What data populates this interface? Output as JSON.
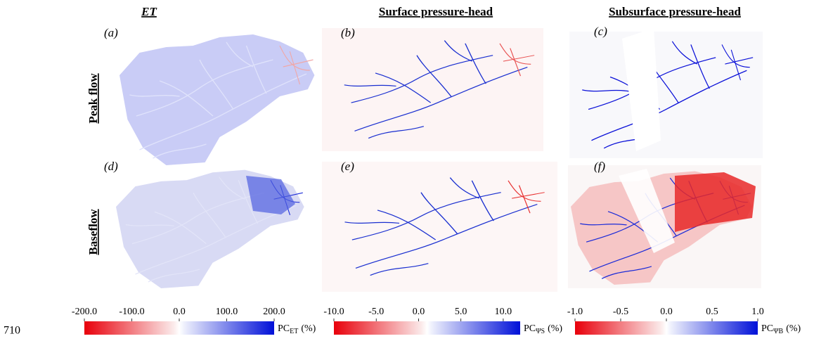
{
  "columns": [
    "ET",
    "Surface pressure-head",
    "Subsurface pressure-head"
  ],
  "rows": [
    "Peak flow",
    "Baseflow"
  ],
  "panels": [
    "(a)",
    "(b)",
    "(c)",
    "(d)",
    "(e)",
    "(f)"
  ],
  "colorbars": [
    {
      "label": {
        "main": "PC",
        "sub": "ET",
        "unit": "(%)"
      },
      "lim": [
        -200,
        200
      ],
      "ticks": [
        {
          "value": -200,
          "label": "-200.0"
        },
        {
          "value": -100,
          "label": "-100.0"
        },
        {
          "value": 0,
          "label": "0.0"
        },
        {
          "value": 100,
          "label": "100.0"
        },
        {
          "value": 200,
          "label": "200.0"
        }
      ]
    },
    {
      "label": {
        "main": "PC",
        "sub": "ΨS",
        "unit": "(%)"
      },
      "lim": [
        -10,
        12
      ],
      "ticks": [
        {
          "value": -10,
          "label": "-10.0"
        },
        {
          "value": -5,
          "label": "-5.0"
        },
        {
          "value": 0,
          "label": "0.0"
        },
        {
          "value": 5,
          "label": "5.0"
        },
        {
          "value": 10,
          "label": "10.0"
        }
      ]
    },
    {
      "label": {
        "main": "PC",
        "sub": "ΨB",
        "unit": "(%)"
      },
      "lim": [
        -1,
        1
      ],
      "ticks": [
        {
          "value": -1,
          "label": "-1.0"
        },
        {
          "value": -0.5,
          "label": "-0.5"
        },
        {
          "value": 0,
          "label": "0.0"
        },
        {
          "value": 0.5,
          "label": "0.5"
        },
        {
          "value": 1,
          "label": "1.0"
        }
      ]
    }
  ],
  "line_number": "710"
}
